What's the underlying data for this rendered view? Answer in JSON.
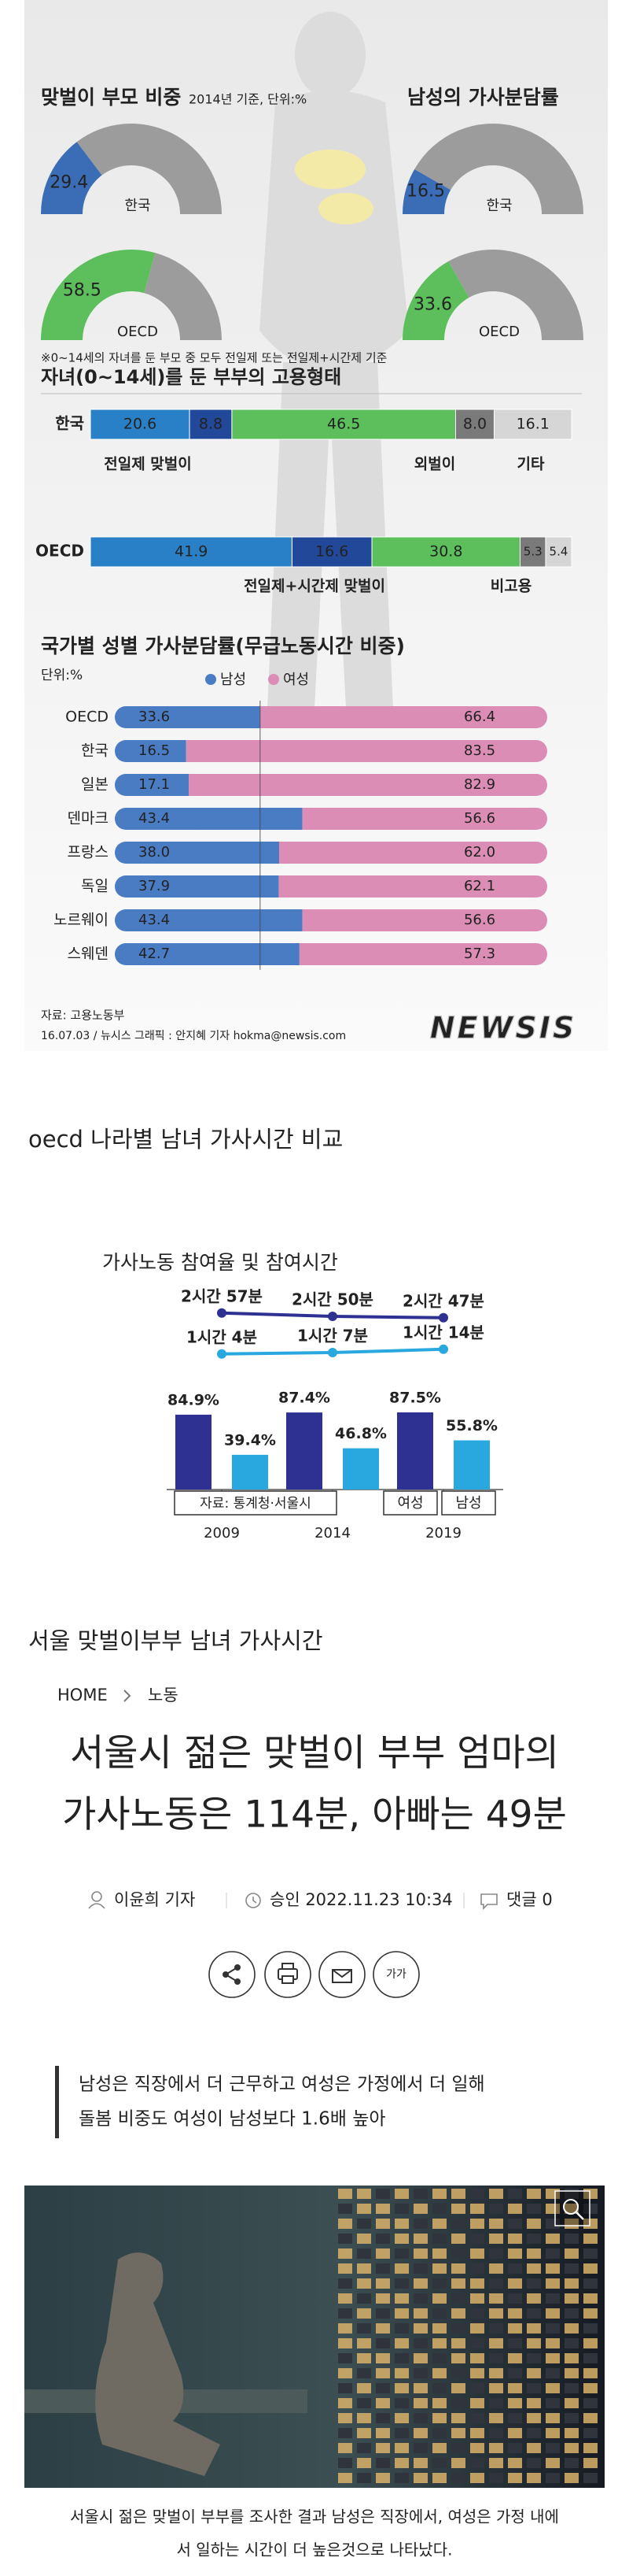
{
  "infographic": {
    "donuts": [
      {
        "title": "맞벌이 부모 비중",
        "subtitle": "2014년 기준, 단위:%",
        "items": [
          {
            "label": "한국",
            "value": 29.4,
            "color": "#3a6db5"
          },
          {
            "label": "OECD",
            "value": 58.5,
            "color": "#5cbf5c"
          }
        ]
      },
      {
        "title": "남성의 가사분담률",
        "items": [
          {
            "label": "한국",
            "value": 16.5,
            "color": "#3a6db5"
          },
          {
            "label": "OECD",
            "value": 33.6,
            "color": "#5cbf5c"
          }
        ]
      }
    ],
    "footnote": "※0~14세의 자녀를 둔 부모 중 모두 전일제 또는 전일제+시간제 기준",
    "employment": {
      "title": "자녀(0~14세)를 둔 부부의 고용형태",
      "categories": [
        "한국",
        "OECD"
      ],
      "series": [
        {
          "name": "전일제 맞벌이",
          "color": "#2a80c6",
          "values": [
            20.6,
            41.9
          ]
        },
        {
          "name": "전일제+시간제 맞벌이",
          "color": "#22489a",
          "values": [
            8.8,
            16.6
          ]
        },
        {
          "name": "외벌이",
          "color": "#5cbf5c",
          "values": [
            46.5,
            30.8
          ]
        },
        {
          "name": "비고용",
          "color": "#7a7a7a",
          "values": [
            8.0,
            5.3
          ],
          "value_labels": [
            "8.0",
            "5.3"
          ]
        },
        {
          "name": "기타",
          "color": "#d6d6d6",
          "values": [
            16.1,
            5.4
          ]
        }
      ]
    },
    "housework_share": {
      "title": "국가별 성별 가사분담률(무급노동시간 비중)",
      "unit": "단위:%",
      "categories": [
        "OECD",
        "한국",
        "일본",
        "덴마크",
        "프랑스",
        "독일",
        "노르웨이",
        "스웨덴"
      ],
      "series": [
        {
          "name": "남성",
          "color": "#4a7cc4",
          "values": [
            33.6,
            16.5,
            17.1,
            43.4,
            38.0,
            37.9,
            43.4,
            42.7
          ],
          "value_labels": [
            "33.6",
            "16.5",
            "17.1",
            "43.4",
            "38.0",
            "37.9",
            "43.4",
            "42.7"
          ]
        },
        {
          "name": "여성",
          "color": "#dc8db5",
          "values": [
            66.4,
            83.5,
            82.9,
            56.6,
            62.0,
            62.1,
            56.6,
            57.3
          ],
          "value_labels": [
            "66.4",
            "83.5",
            "82.9",
            "56.6",
            "62.0",
            "62.1",
            "56.6",
            "57.3"
          ]
        }
      ]
    },
    "source": "자료: 고용노동부",
    "credit": "16.07.03 / 뉴시스 그래픽 : 안지혜 기자 hokma@newsis.com",
    "watermark": "NEWSIS"
  },
  "heading_1": "oecd 나라별 남녀 가사시간 비교",
  "participation": {
    "title": "가사노동 참여율 및 참여시간",
    "categories": [
      "2009",
      "2014",
      "2019"
    ],
    "series": [
      {
        "name": "여성",
        "color": "#2e3192",
        "values": [
          84.9,
          87.4,
          87.5
        ],
        "value_labels": [
          "84.9%",
          "87.4%",
          "87.5%"
        ],
        "minutes": [
          177,
          170,
          167
        ],
        "minute_labels": [
          "2시간 57분",
          "2시간 50분",
          "2시간 47분"
        ]
      },
      {
        "name": "남성",
        "color": "#29a8e0",
        "values": [
          39.4,
          46.8,
          55.8
        ],
        "value_labels": [
          "39.4%",
          "46.8%",
          "55.8%"
        ],
        "minutes": [
          64,
          67,
          74
        ],
        "minute_labels": [
          "1시간 4분",
          "1시간 7분",
          "1시간 14분"
        ]
      }
    ],
    "source": "자료: 통계청·서울시"
  },
  "heading_2": "서울 맞벌이부부 남녀 가사시간",
  "article": {
    "breadcrumb": [
      "HOME",
      "노동"
    ],
    "title_lines": [
      "서울시 젊은 맞벌이 부부 엄마의",
      "가사노동은 114분, 아빠는 49분"
    ],
    "reporter": "이윤희 기자",
    "published": "승인 2022.11.23 10:34",
    "comments": "댓글 0",
    "font_button": "가가",
    "subtitle_lines": [
      "남성은 직장에서 더 근무하고 여성은 가정에서 더 일해",
      "돌봄 비중도 여성이 남성보다 1.6배 높아"
    ],
    "caption_lines": [
      "서울시 젊은 맞벌이 부부를 조사한 결과 남성은 직장에서, 여성은 가정 내에",
      "서 일하는 시간이 더 높은것으로 나타났다."
    ]
  }
}
